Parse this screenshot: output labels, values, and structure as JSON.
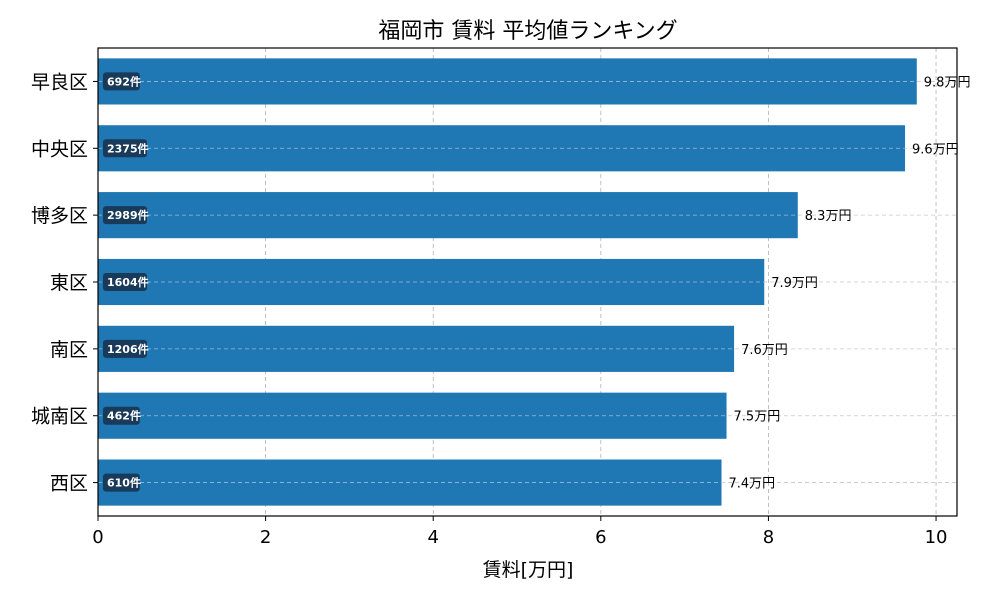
{
  "chart_data": {
    "type": "bar",
    "orientation": "horizontal",
    "title": "福岡市 賃料 平均値ランキング",
    "xlabel": "賃料[万円]",
    "ylabel": "",
    "xlim": [
      0,
      10.25
    ],
    "xticks": [
      0,
      2,
      4,
      6,
      8,
      10
    ],
    "grid": true,
    "legend": "none",
    "bar_color": "#1f77b4",
    "count_badge_color": "#1a3a5a",
    "value_suffix": "万円",
    "count_suffix": "件",
    "categories": [
      "早良区",
      "中央区",
      "博多区",
      "東区",
      "南区",
      "城南区",
      "西区"
    ],
    "values": [
      9.8,
      9.6,
      8.3,
      7.9,
      7.6,
      7.5,
      7.4
    ],
    "value_labels": [
      "9.8万円",
      "9.6万円",
      "8.3万円",
      "7.9万円",
      "7.6万円",
      "7.5万円",
      "7.4万円"
    ],
    "plot_values": [
      9.77,
      9.63,
      8.35,
      7.95,
      7.59,
      7.5,
      7.44
    ],
    "counts": [
      "692件",
      "2375件",
      "2989件",
      "1604件",
      "1206件",
      "462件",
      "610件"
    ]
  }
}
